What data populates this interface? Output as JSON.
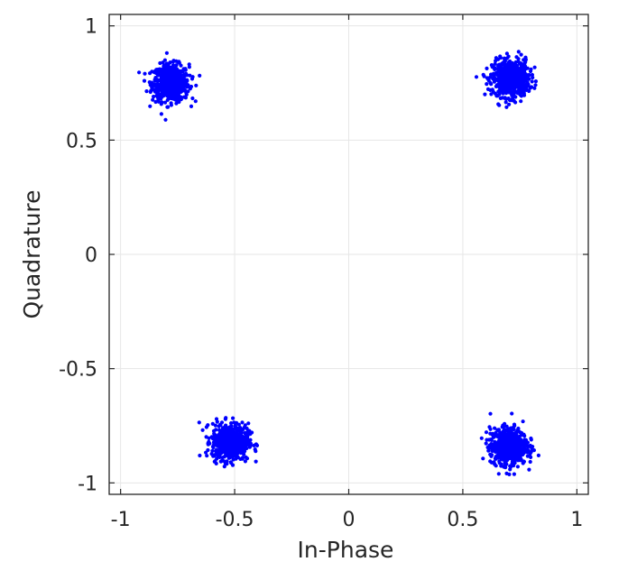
{
  "chart_data": {
    "type": "scatter",
    "title": "",
    "xlabel": "In-Phase",
    "ylabel": "Quadrature",
    "xlim": [
      -1.05,
      1.05
    ],
    "ylim": [
      -1.05,
      1.05
    ],
    "xticks": [
      -1,
      -0.5,
      0,
      0.5,
      1
    ],
    "yticks": [
      -1,
      -0.5,
      0,
      0.5,
      1
    ],
    "xtick_labels": [
      "-1",
      "-0.5",
      "0",
      "0.5",
      "1"
    ],
    "ytick_labels": [
      "-1",
      "-0.5",
      "0",
      "0.5",
      "1"
    ],
    "grid": true,
    "marker_color": "#0000ff",
    "grid_color": "#e6e6e6",
    "axis_color": "#262626",
    "clusters": [
      {
        "center": [
          -0.78,
          0.75
        ],
        "spread": 0.04
      },
      {
        "center": [
          0.71,
          0.77
        ],
        "spread": 0.04
      },
      {
        "center": [
          -0.52,
          -0.82
        ],
        "spread": 0.04
      },
      {
        "center": [
          0.7,
          -0.84
        ],
        "spread": 0.04
      }
    ]
  }
}
